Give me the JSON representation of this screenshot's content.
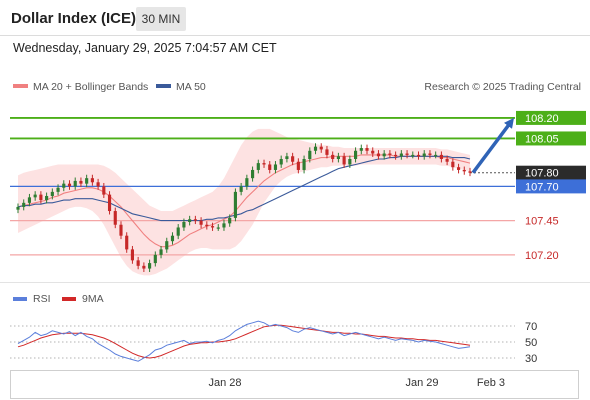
{
  "header": {
    "title": "Dollar Index (ICE)",
    "timeframe": "30 MIN"
  },
  "datetime": "Wednesday, January 29, 2025 7:04:57 AM CET",
  "credit": "Research © 2025 Trading Central",
  "colors": {
    "up_candle": "#2e7d32",
    "down_candle": "#c62828",
    "bollinger_fill": "#fde2e2",
    "ma20": "#f08080",
    "ma50": "#3a5a9a",
    "resistance": "#4caf18",
    "support": "#f4a6a6",
    "pivot": "#3d6fd8",
    "arrow": "#2f63b6",
    "rsi": "#5b7fdb",
    "rsi_ma": "#d22828"
  },
  "chart_data": [
    {
      "type": "candlestick",
      "legend": [
        {
          "name": "MA 20 + Bollinger Bands",
          "color": "#f08080"
        },
        {
          "name": "MA 50",
          "color": "#3a5a9a"
        }
      ],
      "ylim": [
        106.98,
        108.36
      ],
      "x_ticks": [
        "Jan 28",
        "Jan 29",
        "Feb 3"
      ],
      "levels": [
        {
          "value": 108.2,
          "label": "108.20",
          "kind": "resistance"
        },
        {
          "value": 108.05,
          "label": "108.05",
          "kind": "resistance"
        },
        {
          "value": 107.8,
          "label": "107.80",
          "kind": "current"
        },
        {
          "value": 107.7,
          "label": "107.70",
          "kind": "pivot"
        },
        {
          "value": 107.45,
          "label": "107.45",
          "kind": "support"
        },
        {
          "value": 107.2,
          "label": "107.20",
          "kind": "support"
        }
      ],
      "close_series": [
        107.55,
        107.58,
        107.62,
        107.64,
        107.6,
        107.63,
        107.66,
        107.69,
        107.72,
        107.7,
        107.74,
        107.72,
        107.76,
        107.73,
        107.7,
        107.64,
        107.52,
        107.42,
        107.34,
        107.24,
        107.16,
        107.12,
        107.1,
        107.14,
        107.2,
        107.24,
        107.3,
        107.34,
        107.4,
        107.44,
        107.46,
        107.45,
        107.42,
        107.41,
        107.4,
        107.4,
        107.43,
        107.47,
        107.66,
        107.7,
        107.76,
        107.82,
        107.87,
        107.86,
        107.82,
        107.86,
        107.9,
        107.92,
        107.88,
        107.82,
        107.9,
        107.96,
        107.99,
        107.97,
        107.93,
        107.9,
        107.92,
        107.86,
        107.9,
        107.96,
        107.98,
        107.96,
        107.94,
        107.92,
        107.94,
        107.93,
        107.92,
        107.94,
        107.93,
        107.93,
        107.92,
        107.94,
        107.93,
        107.93,
        107.9,
        107.88,
        107.84,
        107.82,
        107.81,
        107.8
      ],
      "ma20": [
        107.55,
        107.56,
        107.57,
        107.58,
        107.59,
        107.6,
        107.62,
        107.63,
        107.65,
        107.66,
        107.67,
        107.68,
        107.69,
        107.69,
        107.68,
        107.66,
        107.63,
        107.59,
        107.55,
        107.5,
        107.45,
        107.4,
        107.35,
        107.31,
        107.28,
        107.26,
        107.26,
        107.27,
        107.29,
        107.32,
        107.35,
        107.37,
        107.39,
        107.41,
        107.42,
        107.44,
        107.46,
        107.48,
        107.52,
        107.57,
        107.62,
        107.66,
        107.7,
        107.74,
        107.77,
        107.8,
        107.82,
        107.84,
        107.86,
        107.87,
        107.88,
        107.89,
        107.9,
        107.91,
        107.91,
        107.92,
        107.92,
        107.92,
        107.92,
        107.92,
        107.93,
        107.93,
        107.93,
        107.93,
        107.93,
        107.93,
        107.92,
        107.92,
        107.92,
        107.92,
        107.92,
        107.92,
        107.92,
        107.92,
        107.91,
        107.91,
        107.9,
        107.89,
        107.88,
        107.87
      ],
      "ma50": [
        107.55,
        107.56,
        107.56,
        107.57,
        107.57,
        107.58,
        107.58,
        107.59,
        107.6,
        107.6,
        107.61,
        107.61,
        107.61,
        107.61,
        107.6,
        107.59,
        107.58,
        107.56,
        107.54,
        107.52,
        107.5,
        107.49,
        107.48,
        107.47,
        107.46,
        107.45,
        107.45,
        107.45,
        107.45,
        107.45,
        107.45,
        107.45,
        107.45,
        107.46,
        107.46,
        107.47,
        107.47,
        107.48,
        107.49,
        107.5,
        107.52,
        107.53,
        107.55,
        107.57,
        107.59,
        107.61,
        107.63,
        107.65,
        107.67,
        107.69,
        107.71,
        107.73,
        107.75,
        107.77,
        107.79,
        107.81,
        107.83,
        107.84,
        107.85,
        107.86,
        107.87,
        107.88,
        107.89,
        107.9,
        107.9,
        107.91,
        107.91,
        107.92,
        107.92,
        107.92,
        107.92,
        107.92,
        107.92,
        107.92,
        107.92,
        107.92,
        107.91,
        107.91,
        107.91,
        107.9
      ],
      "bollinger_upper": [
        107.78,
        107.8,
        107.81,
        107.82,
        107.83,
        107.84,
        107.85,
        107.86,
        107.86,
        107.86,
        107.86,
        107.86,
        107.86,
        107.86,
        107.86,
        107.85,
        107.83,
        107.8,
        107.76,
        107.72,
        107.68,
        107.64,
        107.6,
        107.56,
        107.54,
        107.52,
        107.52,
        107.52,
        107.54,
        107.56,
        107.58,
        107.6,
        107.62,
        107.64,
        107.66,
        107.7,
        107.76,
        107.84,
        107.92,
        108.0,
        108.06,
        108.1,
        108.12,
        108.12,
        108.12,
        108.1,
        108.08,
        108.06,
        108.05,
        108.04,
        108.03,
        108.02,
        108.01,
        108.0,
        108.0,
        107.99,
        107.99,
        107.98,
        107.98,
        107.98,
        107.98,
        107.98,
        107.98,
        107.98,
        107.98,
        107.98,
        107.98,
        107.98,
        107.98,
        107.98,
        107.98,
        107.98,
        107.98,
        107.98,
        107.97,
        107.97,
        107.96,
        107.95,
        107.94,
        107.93
      ],
      "bollinger_lower": [
        107.36,
        107.38,
        107.4,
        107.42,
        107.44,
        107.46,
        107.48,
        107.5,
        107.52,
        107.54,
        107.55,
        107.55,
        107.54,
        107.52,
        107.48,
        107.42,
        107.34,
        107.26,
        107.18,
        107.12,
        107.08,
        107.06,
        107.05,
        107.05,
        107.06,
        107.08,
        107.1,
        107.13,
        107.16,
        107.19,
        107.22,
        107.24,
        107.25,
        107.25,
        107.24,
        107.24,
        107.24,
        107.24,
        107.26,
        107.3,
        107.36,
        107.42,
        107.5,
        107.58,
        107.64,
        107.7,
        107.74,
        107.77,
        107.79,
        107.8,
        107.81,
        107.82,
        107.83,
        107.84,
        107.84,
        107.85,
        107.85,
        107.85,
        107.85,
        107.85,
        107.86,
        107.86,
        107.86,
        107.86,
        107.86,
        107.86,
        107.86,
        107.86,
        107.86,
        107.86,
        107.86,
        107.86,
        107.86,
        107.86,
        107.85,
        107.85,
        107.84,
        107.83,
        107.82,
        107.81
      ],
      "projection": {
        "from": 107.8,
        "to": 108.2
      }
    },
    {
      "type": "line",
      "legend": [
        {
          "name": "RSI",
          "color": "#5b7fdb"
        },
        {
          "name": "9MA",
          "color": "#d22828"
        }
      ],
      "ylim": [
        20,
        80
      ],
      "y_ticks": [
        "70",
        "50",
        "30"
      ],
      "rsi": [
        48,
        52,
        56,
        62,
        58,
        60,
        64,
        62,
        60,
        63,
        58,
        62,
        57,
        54,
        48,
        44,
        40,
        35,
        32,
        30,
        28,
        26,
        30,
        34,
        40,
        42,
        46,
        48,
        50,
        52,
        48,
        50,
        50,
        51,
        49,
        52,
        54,
        58,
        64,
        68,
        72,
        74,
        76,
        74,
        70,
        72,
        70,
        68,
        64,
        62,
        66,
        68,
        66,
        64,
        62,
        60,
        62,
        58,
        60,
        62,
        60,
        58,
        56,
        54,
        56,
        54,
        52,
        54,
        53,
        52,
        50,
        52,
        51,
        50,
        48,
        46,
        44,
        42,
        43,
        44
      ],
      "rsi_ma": [
        44,
        46,
        49,
        52,
        55,
        57,
        59,
        60,
        61,
        61,
        61,
        61,
        60,
        59,
        57,
        55,
        52,
        48,
        44,
        40,
        36,
        33,
        31,
        30,
        31,
        33,
        36,
        39,
        42,
        45,
        47,
        48,
        49,
        49,
        50,
        50,
        51,
        52,
        54,
        57,
        60,
        63,
        66,
        69,
        70,
        71,
        71,
        70,
        69,
        68,
        67,
        66,
        65,
        64,
        63,
        62,
        62,
        61,
        61,
        60,
        60,
        59,
        58,
        57,
        57,
        56,
        55,
        55,
        54,
        54,
        53,
        53,
        52,
        52,
        51,
        50,
        49,
        48,
        47,
        46
      ]
    }
  ]
}
